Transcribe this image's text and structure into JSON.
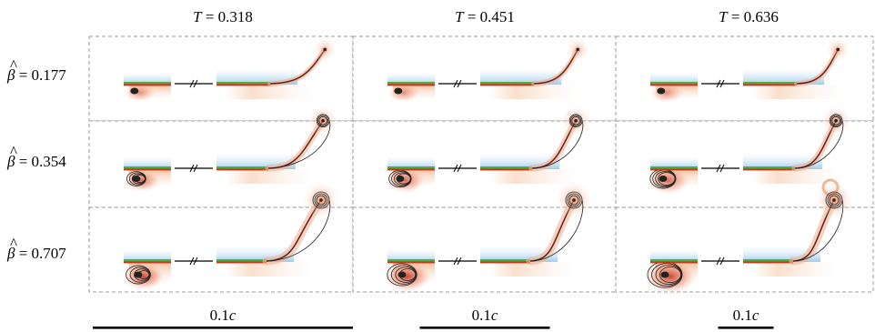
{
  "columns": [
    {
      "symbol": "T",
      "eq": " = 0.318",
      "scale_label": "0.1",
      "scale_unit": "c",
      "scale": 1.0
    },
    {
      "symbol": "T",
      "eq": " = 0.451",
      "scale_label": "0.1",
      "scale_unit": "c",
      "scale": 0.5
    },
    {
      "symbol": "T",
      "eq": " = 0.636",
      "scale_label": "0.1",
      "scale_unit": "c",
      "scale": 0.25
    }
  ],
  "rows": [
    {
      "symbol": "β",
      "hat": "^",
      "eq": " = 0.177",
      "bend": 0.3
    },
    {
      "symbol": "β",
      "hat": "^",
      "eq": " = 0.354",
      "bend": 0.65
    },
    {
      "symbol": "β",
      "hat": "^",
      "eq": " = 0.707",
      "bend": 1.0
    }
  ],
  "colors": {
    "panel_border": "#9a9a9a",
    "plate_green": "#4caf3a",
    "plate_blue": "#8fc4e8",
    "wake_red": "#c8361e",
    "wake_orange": "#f6c9a8",
    "vortex_dark": "#222222",
    "break_line": "#000000"
  }
}
